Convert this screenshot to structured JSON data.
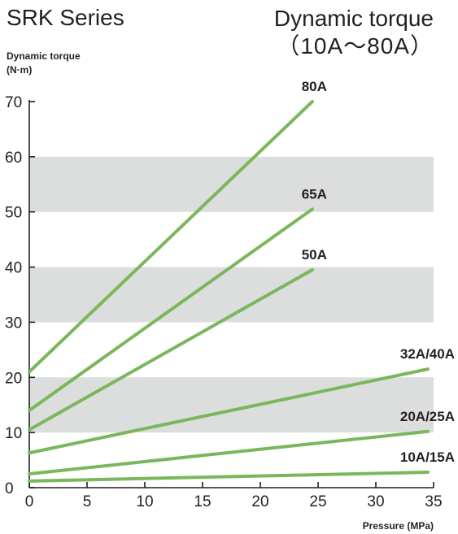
{
  "header": {
    "series": "SRK Series",
    "title_line1": "Dynamic torque",
    "title_line2": "（10A～80A）"
  },
  "colors": {
    "line": "#7ab75c",
    "band": "#dcdddd",
    "axis": "#231f20"
  },
  "chart_data": {
    "type": "line",
    "title": "Dynamic torque（10A～80A）",
    "ylabel": "Dynamic torque",
    "yunit": "(N·m)",
    "xlabel": "Pressure (MPa)",
    "xlim": [
      0,
      35
    ],
    "ylim": [
      0,
      70
    ],
    "xticks": [
      0,
      5,
      10,
      15,
      20,
      25,
      30,
      35
    ],
    "yticks": [
      0,
      10,
      20,
      30,
      40,
      50,
      60,
      70
    ],
    "bands": [
      [
        10,
        20
      ],
      [
        30,
        40
      ],
      [
        50,
        60
      ]
    ],
    "grid": false,
    "series": [
      {
        "name": "80A",
        "x": [
          0,
          24.5
        ],
        "y": [
          21,
          70
        ]
      },
      {
        "name": "65A",
        "x": [
          0,
          24.5
        ],
        "y": [
          14,
          50.5
        ]
      },
      {
        "name": "50A",
        "x": [
          0,
          24.5
        ],
        "y": [
          10.5,
          39.5
        ]
      },
      {
        "name": "32A/40A",
        "x": [
          0,
          34.5
        ],
        "y": [
          6.3,
          21.5
        ]
      },
      {
        "name": "20A/25A",
        "x": [
          0,
          34.5
        ],
        "y": [
          2.5,
          10.2
        ]
      },
      {
        "name": "10A/15A",
        "x": [
          0,
          34.5
        ],
        "y": [
          1.2,
          2.8
        ]
      }
    ]
  }
}
